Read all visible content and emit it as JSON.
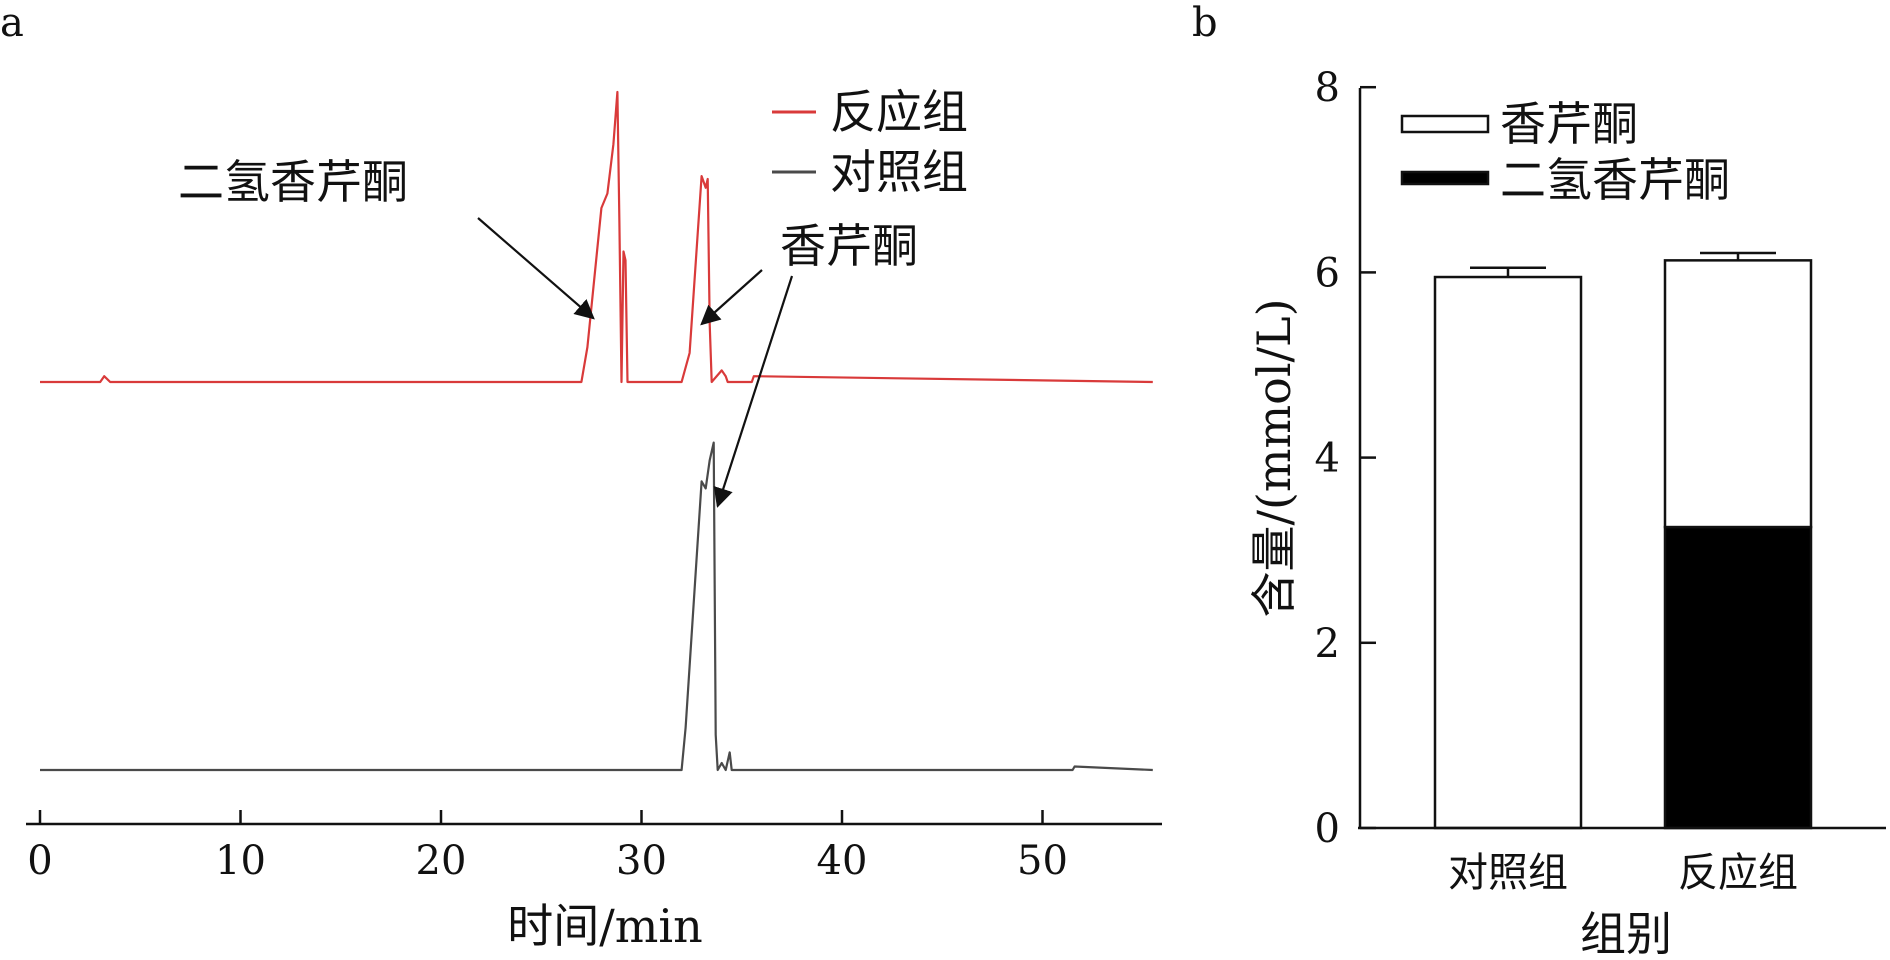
{
  "chart_data": [
    {
      "panel_label": "a",
      "type": "line",
      "xlabel": "时间/min",
      "ylabel": "",
      "xlim": [
        -1,
        56
      ],
      "xticks": [
        0,
        10,
        20,
        30,
        40,
        50
      ],
      "legend": {
        "placement": "top-right"
      },
      "series": [
        {
          "name": "反应组",
          "color": "#d93a3a",
          "x": [
            0,
            3.0,
            3.2,
            3.5,
            27.0,
            27.3,
            28.0,
            28.3,
            28.6,
            28.8,
            28.9,
            29.0,
            29.1,
            29.2,
            29.3,
            29.35,
            32.0,
            32.4,
            33.0,
            33.2,
            33.3,
            33.4,
            33.5,
            34.0,
            34.2,
            34.3,
            35.5,
            35.6,
            55.5
          ],
          "y": [
            0,
            0,
            0.02,
            0,
            0,
            0.12,
            0.6,
            0.65,
            0.82,
            1.0,
            0.55,
            0,
            0.45,
            0.42,
            0,
            0,
            0,
            0.1,
            0.71,
            0.67,
            0.7,
            0.2,
            0,
            0.04,
            0.02,
            0,
            0,
            0.02,
            0
          ]
        },
        {
          "name": "对照组",
          "color": "#4a4a4a",
          "x": [
            0,
            32.0,
            32.2,
            33.0,
            33.2,
            33.4,
            33.6,
            33.7,
            33.8,
            34.0,
            34.2,
            34.4,
            34.5,
            34.6,
            34.7,
            51.5,
            51.6,
            55.5
          ],
          "y": [
            0,
            0,
            0.12,
            0.82,
            0.8,
            0.88,
            0.93,
            0.1,
            0.0,
            0.02,
            0,
            0.05,
            0,
            0,
            0,
            0,
            0.01,
            0
          ]
        }
      ],
      "annotations": [
        {
          "text": "二氢香芹酮",
          "x": 27.6,
          "y": 0.22
        },
        {
          "text": "香芹酮",
          "x": 33.0,
          "y": 0.2
        },
        {
          "text": "香芹酮",
          "x": 33.8,
          "y": 0.75
        }
      ]
    },
    {
      "panel_label": "b",
      "type": "bar",
      "stacked": true,
      "categories": [
        "对照组",
        "反应组"
      ],
      "xlabel": "组别",
      "ylabel": "含量/(mmol/L)",
      "ylim": [
        0,
        8
      ],
      "yticks": [
        0,
        2,
        4,
        6,
        8
      ],
      "legend": {
        "placement": "top-left"
      },
      "series": [
        {
          "name": "二氢香芹酮",
          "color": "#000000",
          "values": [
            0,
            3.25
          ],
          "errors": [
            0,
            0.15
          ]
        },
        {
          "name": "香芹酮",
          "color": "#ffffff",
          "values": [
            5.95,
            2.88
          ],
          "errors": [
            0.1,
            0.08
          ]
        }
      ]
    }
  ]
}
